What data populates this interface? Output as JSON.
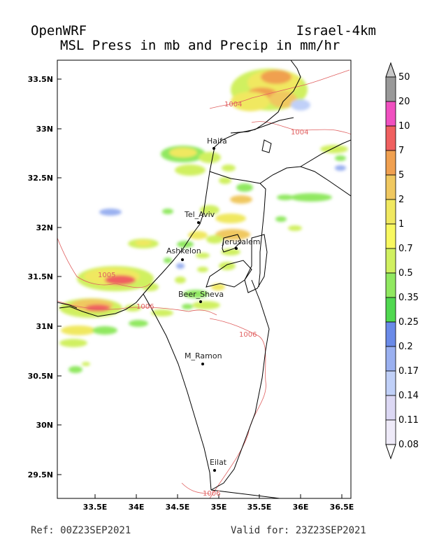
{
  "title": {
    "model": "OpenWRF",
    "domain": "Israel-4km",
    "variable": "MSL Press in mb and Precip in mm/hr"
  },
  "footer": {
    "ref": "Ref: 00Z23SEP2021",
    "valid": "Valid for: 23Z23SEP2021"
  },
  "map": {
    "lat_labels": [
      "33.5N",
      "33N",
      "32.5N",
      "32N",
      "31.5N",
      "31N",
      "30.5N",
      "30N",
      "29.5N"
    ],
    "lon_labels": [
      "33.5E",
      "34E",
      "34.5E",
      "35E",
      "35.5E",
      "36E",
      "36.5E"
    ],
    "cities": [
      {
        "name": "Haifa",
        "lon": 34.99,
        "lat": 32.8
      },
      {
        "name": "Tel_Aviv",
        "lon": 34.78,
        "lat": 32.07
      },
      {
        "name": "Jerusalem",
        "lon": 35.21,
        "lat": 31.78
      },
      {
        "name": "Ashkelon",
        "lon": 34.57,
        "lat": 31.67
      },
      {
        "name": "Beer_Sheva",
        "lon": 34.79,
        "lat": 31.25
      },
      {
        "name": "M_Ramon",
        "lon": 34.8,
        "lat": 30.61
      },
      {
        "name": "Eilat",
        "lon": 34.95,
        "lat": 29.55
      }
    ],
    "isobar_labels": [
      "1004",
      "1004",
      "1005",
      "1006",
      "1006",
      "1006"
    ]
  },
  "legend": {
    "levels": [
      "50",
      "20",
      "10",
      "7",
      "5",
      "2",
      "1",
      "0.7",
      "0.5",
      "0.35",
      "0.25",
      "0.2",
      "0.17",
      "0.14",
      "0.11",
      "0.08"
    ],
    "colors": [
      "#c8c8c8",
      "#999999",
      "#f050c0",
      "#f06060",
      "#f0a050",
      "#f0c860",
      "#f0e860",
      "#f8f860",
      "#d0f060",
      "#90e860",
      "#50d850",
      "#6a8ae8",
      "#9ab0f0",
      "#c0d0f8",
      "#dcd8f4",
      "#eeeaf8",
      "#ffffff"
    ]
  }
}
